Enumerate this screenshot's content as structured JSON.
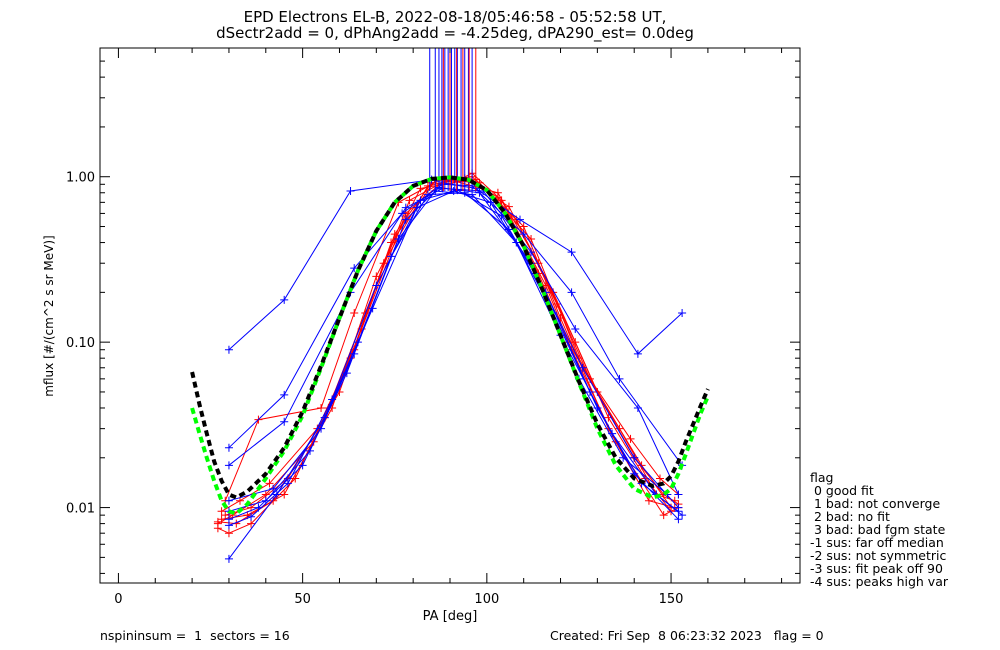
{
  "header": {
    "title_line1": "EPD Electrons EL-B, 2022-08-18/05:46:58 - 05:52:58 UT,",
    "title_line2": "dSectr2add = 0, dPhAng2add = -4.25deg, dPA290_est=   0.0deg"
  },
  "footer": {
    "left": "nspininsum =  1  sectors = 16",
    "right": "Created: Fri Sep  8 06:23:32 2023   flag = 0"
  },
  "legend": {
    "title": "flag",
    "items": [
      " 0 good fit",
      " 1 bad: not converge",
      " 2 bad: no fit",
      " 3 bad: bad fgm state",
      "-1 sus: far off median",
      "-2 sus: not symmetric",
      "-3 sus: fit peak off 90",
      "-4 sus: peaks high var"
    ]
  },
  "colors": {
    "red": "#ff0000",
    "blue": "#0000ff",
    "green": "#00ff00",
    "black": "#000000"
  },
  "chart_data": {
    "type": "line",
    "title": "EPD Electrons EL-B, 2022-08-18/05:46:58 - 05:52:58 UT,",
    "subtitle": "dSectr2add = 0, dPhAng2add = -4.25deg, dPA290_est=   0.0deg",
    "xlabel": "PA [deg]",
    "ylabel": "mflux [#/(cm^2 s sr MeV)]",
    "xlim": [
      -5,
      185
    ],
    "ylim": [
      0.0035,
      6.0
    ],
    "yscale": "log",
    "xticks": [
      0,
      50,
      100,
      150
    ],
    "xtick_labels": [
      "0",
      "50",
      "100",
      "150"
    ],
    "yticks": [
      0.01,
      0.1,
      1.0
    ],
    "ytick_labels": [
      "0.01",
      "0.10",
      "1.00"
    ],
    "grid": false,
    "series": [
      {
        "color": "red",
        "marker": "+",
        "x": [
          27,
          31,
          40,
          53,
          64,
          75,
          85,
          90,
          96,
          104,
          116,
          123,
          135,
          148,
          152
        ],
        "y": [
          0.008,
          0.009,
          0.012,
          0.025,
          0.09,
          0.45,
          0.92,
          0.9,
          1.05,
          0.72,
          0.22,
          0.09,
          0.025,
          0.009,
          0.01
        ]
      },
      {
        "color": "red",
        "marker": "+",
        "x": [
          28,
          33,
          41,
          54,
          63,
          74,
          86,
          95,
          103,
          114,
          122,
          136,
          146,
          151
        ],
        "y": [
          0.0095,
          0.011,
          0.014,
          0.03,
          0.08,
          0.4,
          0.95,
          0.97,
          0.75,
          0.26,
          0.1,
          0.03,
          0.012,
          0.011
        ]
      },
      {
        "color": "red",
        "marker": "+",
        "x": [
          27,
          30,
          36,
          48,
          57,
          66,
          78,
          88,
          97,
          110,
          120,
          133,
          144,
          151
        ],
        "y": [
          0.0075,
          0.007,
          0.008,
          0.015,
          0.04,
          0.12,
          0.6,
          0.93,
          0.96,
          0.5,
          0.14,
          0.03,
          0.011,
          0.01
        ]
      },
      {
        "color": "red",
        "marker": "+",
        "x": [
          29,
          38,
          55,
          64,
          76,
          87,
          96,
          108,
          119,
          128,
          139,
          147,
          152
        ],
        "y": [
          0.011,
          0.034,
          0.04,
          0.15,
          0.7,
          0.95,
          1.0,
          0.55,
          0.17,
          0.06,
          0.026,
          0.015,
          0.012
        ]
      },
      {
        "color": "red",
        "marker": "+",
        "x": [
          28,
          35,
          45,
          58,
          70,
          82,
          92,
          103,
          114,
          124,
          133,
          143,
          150
        ],
        "y": [
          0.0085,
          0.009,
          0.012,
          0.04,
          0.25,
          0.85,
          0.93,
          0.8,
          0.3,
          0.1,
          0.035,
          0.015,
          0.0095
        ]
      },
      {
        "color": "red",
        "marker": "+",
        "x": [
          27,
          32,
          42,
          56,
          67,
          79,
          89,
          98,
          112,
          125,
          140,
          148,
          152
        ],
        "y": [
          0.0082,
          0.008,
          0.011,
          0.035,
          0.15,
          0.72,
          0.95,
          0.92,
          0.42,
          0.08,
          0.02,
          0.012,
          0.0105
        ]
      },
      {
        "color": "red",
        "marker": "+",
        "x": [
          29,
          36,
          46,
          60,
          72,
          84,
          94,
          106,
          118,
          130,
          142,
          150
        ],
        "y": [
          0.009,
          0.01,
          0.015,
          0.05,
          0.3,
          0.88,
          0.98,
          0.66,
          0.2,
          0.05,
          0.018,
          0.01
        ]
      },
      {
        "color": "blue",
        "marker": "+",
        "x": [
          30,
          45,
          63,
          85,
          90,
          97,
          109,
          123,
          141,
          153
        ],
        "y": [
          0.09,
          0.18,
          0.82,
          0.96,
          0.9,
          0.85,
          0.55,
          0.35,
          0.085,
          0.15
        ]
      },
      {
        "color": "blue",
        "marker": "+",
        "x": [
          30,
          45,
          64,
          77,
          88,
          96,
          110,
          123,
          136,
          153
        ],
        "y": [
          0.023,
          0.048,
          0.28,
          0.6,
          0.9,
          0.88,
          0.45,
          0.2,
          0.06,
          0.018
        ]
      },
      {
        "color": "blue",
        "marker": "+",
        "x": [
          30,
          45,
          63,
          78,
          88,
          99,
          112,
          124,
          141,
          152
        ],
        "y": [
          0.018,
          0.033,
          0.2,
          0.65,
          0.85,
          0.82,
          0.35,
          0.12,
          0.04,
          0.012
        ]
      },
      {
        "color": "blue",
        "marker": "+",
        "x": [
          30,
          42,
          55,
          65,
          78,
          87,
          98,
          112,
          126,
          140,
          152
        ],
        "y": [
          0.011,
          0.013,
          0.03,
          0.1,
          0.55,
          0.86,
          0.8,
          0.3,
          0.07,
          0.02,
          0.01
        ]
      },
      {
        "color": "blue",
        "marker": "+",
        "x": [
          30,
          40,
          52,
          64,
          76,
          86,
          96,
          108,
          120,
          134,
          146,
          153
        ],
        "y": [
          0.0095,
          0.011,
          0.022,
          0.085,
          0.42,
          0.82,
          0.78,
          0.4,
          0.11,
          0.028,
          0.012,
          0.009
        ]
      },
      {
        "color": "blue",
        "marker": "+",
        "x": [
          30,
          38,
          50,
          62,
          74,
          84,
          94,
          106,
          118,
          130,
          142,
          152
        ],
        "y": [
          0.0085,
          0.01,
          0.018,
          0.065,
          0.33,
          0.78,
          0.8,
          0.48,
          0.15,
          0.04,
          0.014,
          0.0095
        ]
      },
      {
        "color": "blue",
        "marker": "+",
        "x": [
          30,
          36,
          46,
          58,
          70,
          82,
          92,
          104,
          116,
          128,
          140,
          152
        ],
        "y": [
          0.0078,
          0.0088,
          0.014,
          0.045,
          0.22,
          0.72,
          0.83,
          0.58,
          0.2,
          0.05,
          0.016,
          0.0085
        ]
      },
      {
        "color": "blue",
        "marker": "+",
        "x": [
          30,
          43,
          56,
          69,
          81,
          91,
          101,
          113,
          125,
          137,
          149
        ],
        "y": [
          0.0049,
          0.012,
          0.035,
          0.16,
          0.65,
          0.82,
          0.7,
          0.26,
          0.06,
          0.02,
          0.012
        ]
      }
    ],
    "fits": [
      {
        "name": "green dashed fit",
        "color": "green",
        "style": "dashed",
        "x": [
          20,
          22,
          24,
          26,
          28,
          30,
          32,
          35,
          40,
          45,
          50,
          55,
          60,
          65,
          70,
          75,
          80,
          85,
          90,
          95,
          100,
          105,
          110,
          115,
          120,
          125,
          130,
          135,
          140,
          145,
          148,
          150,
          152,
          154,
          156,
          158,
          160
        ],
        "y": [
          0.04,
          0.028,
          0.02,
          0.0145,
          0.011,
          0.0095,
          0.0092,
          0.0105,
          0.015,
          0.022,
          0.036,
          0.07,
          0.14,
          0.27,
          0.47,
          0.7,
          0.88,
          0.97,
          0.99,
          0.96,
          0.83,
          0.6,
          0.38,
          0.21,
          0.11,
          0.057,
          0.03,
          0.018,
          0.013,
          0.0115,
          0.012,
          0.013,
          0.016,
          0.021,
          0.028,
          0.037,
          0.047
        ]
      },
      {
        "name": "black dashed fit",
        "color": "black",
        "style": "dashed",
        "x": [
          20,
          22,
          24,
          26,
          28,
          30,
          32,
          35,
          40,
          45,
          50,
          55,
          60,
          65,
          70,
          75,
          80,
          85,
          90,
          95,
          100,
          105,
          110,
          115,
          120,
          125,
          130,
          135,
          140,
          145,
          148,
          150,
          152,
          154,
          156,
          158,
          160
        ],
        "y": [
          0.066,
          0.042,
          0.028,
          0.019,
          0.0145,
          0.012,
          0.0115,
          0.0125,
          0.016,
          0.023,
          0.038,
          0.072,
          0.14,
          0.27,
          0.47,
          0.7,
          0.88,
          0.97,
          0.99,
          0.96,
          0.83,
          0.6,
          0.38,
          0.21,
          0.11,
          0.058,
          0.032,
          0.02,
          0.015,
          0.0135,
          0.014,
          0.0155,
          0.019,
          0.025,
          0.032,
          0.041,
          0.052
        ]
      }
    ],
    "vertical_lines": [
      {
        "color": "blue",
        "x": [
          84.5,
          86.0,
          87.0,
          87.8,
          88.6,
          89.5,
          90.4,
          91.3,
          92.0,
          93.0,
          94.0,
          95.0,
          96.0
        ]
      },
      {
        "color": "red",
        "x": [
          88.2,
          90.0,
          91.8,
          93.5,
          95.2,
          97.0
        ]
      }
    ]
  }
}
